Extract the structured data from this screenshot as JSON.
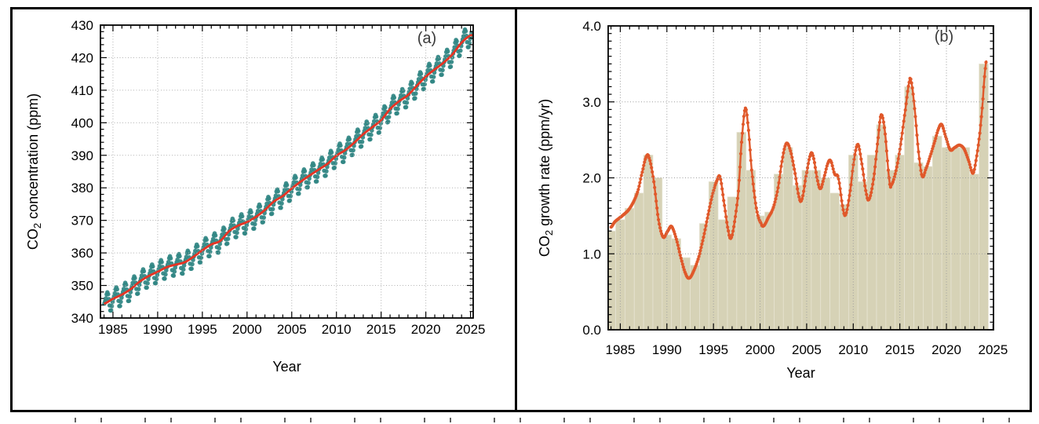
{
  "figure": {
    "panel_count": 2,
    "background": "#ffffff",
    "border_color": "#000000"
  },
  "chart_data": [
    {
      "type": "scatter+line",
      "panel_label": "(a)",
      "xlabel": "Year",
      "ylabel": {
        "prefix": "CO",
        "sub": "2",
        "rest": " concentration (ppm)"
      },
      "xlim": [
        1983.6,
        2025.3
      ],
      "ylim": [
        340,
        430
      ],
      "xticks": [
        1985,
        1990,
        1995,
        2000,
        2005,
        2010,
        2015,
        2020,
        2025
      ],
      "xtick_labels": [
        "1985",
        "1990",
        "1995",
        "2000",
        "2005",
        "2010",
        "2015",
        "2020",
        "2025"
      ],
      "yticks": [
        340,
        350,
        360,
        370,
        380,
        390,
        400,
        410,
        420,
        430
      ],
      "ytick_labels": [
        "340",
        "350",
        "360",
        "370",
        "380",
        "390",
        "400",
        "410",
        "420",
        "430"
      ],
      "x_minor_step": 1,
      "y_minor_step": 2,
      "grid": true,
      "grid_color": "#b0b0b0",
      "legend": "none",
      "series": [
        {
          "name": "monthly-mean-co2-with-seasonal-cycle",
          "style": "dots",
          "color": "#318784"
        },
        {
          "name": "deseasonalized-trend",
          "style": "line",
          "color": "#e63323"
        }
      ],
      "trend_ppm_by_year": {
        "years": [
          1984,
          1985,
          1986,
          1987,
          1988,
          1989,
          1990,
          1991,
          1992,
          1993,
          1994,
          1995,
          1996,
          1997,
          1998,
          1999,
          2000,
          2001,
          2002,
          2003,
          2004,
          2005,
          2006,
          2007,
          2008,
          2009,
          2010,
          2011,
          2012,
          2013,
          2014,
          2015,
          2016,
          2017,
          2018,
          2019,
          2020,
          2021,
          2022,
          2023,
          2024,
          2025
        ],
        "values": [
          344.4,
          345.9,
          347.2,
          348.9,
          351.2,
          352.9,
          354.2,
          355.6,
          356.4,
          357.1,
          358.8,
          360.8,
          362.6,
          363.7,
          366.7,
          368.4,
          369.5,
          371.1,
          373.2,
          375.8,
          377.5,
          379.8,
          381.9,
          383.8,
          385.6,
          387.4,
          389.9,
          391.6,
          393.9,
          396.5,
          398.6,
          400.8,
          404.2,
          406.6,
          408.5,
          411.4,
          414.2,
          416.4,
          418.5,
          421.1,
          424.6,
          426.8
        ]
      },
      "seasonal_cycle_ppm": [
        0.0,
        0.66,
        1.4,
        2.5,
        3.03,
        2.32,
        0.68,
        -1.42,
        -3.12,
        -3.25,
        -2.05,
        -0.9
      ],
      "dots_time_range": [
        1984.03,
        2025.15
      ],
      "line_time_range": [
        1984.0,
        2025.25
      ],
      "dot_radius": 2.8
    },
    {
      "type": "bar+line",
      "panel_label": "(b)",
      "xlabel": "Year",
      "ylabel": {
        "prefix": "CO",
        "sub": "2",
        "rest": " growth rate (ppm/yr)"
      },
      "xlim": [
        1983.7,
        2025.05
      ],
      "ylim": [
        0,
        4
      ],
      "xticks": [
        1985,
        1990,
        1995,
        2000,
        2005,
        2010,
        2015,
        2020,
        2025
      ],
      "xtick_labels": [
        "1985",
        "1990",
        "1995",
        "2000",
        "2005",
        "2010",
        "2015",
        "2020",
        "2025"
      ],
      "yticks": [
        0,
        1,
        2,
        3,
        4
      ],
      "ytick_labels": [
        "0.0",
        "1.0",
        "2.0",
        "3.0",
        "4.0"
      ],
      "x_minor_step": 1,
      "y_minor_step": 0.1,
      "grid": true,
      "grid_color": "#9e9e9e",
      "bars": {
        "name": "annual-mean-growth-rate",
        "color": "#d6d2b6",
        "edge_color": "#e9e6d6",
        "width_years": 1,
        "years": [
          1984,
          1985,
          1986,
          1987,
          1988,
          1989,
          1990,
          1991,
          1992,
          1993,
          1994,
          1995,
          1996,
          1997,
          1998,
          1999,
          2000,
          2001,
          2002,
          2003,
          2004,
          2005,
          2006,
          2007,
          2008,
          2009,
          2010,
          2011,
          2012,
          2013,
          2014,
          2015,
          2016,
          2017,
          2018,
          2019,
          2020,
          2021,
          2022,
          2023,
          2024
        ],
        "values": [
          1.3,
          1.45,
          1.6,
          1.8,
          2.3,
          2.0,
          1.25,
          1.2,
          0.95,
          0.85,
          1.4,
          1.95,
          1.45,
          1.75,
          2.6,
          2.1,
          1.5,
          1.55,
          2.05,
          2.4,
          1.9,
          2.1,
          2.1,
          2.0,
          1.8,
          1.65,
          2.3,
          1.95,
          2.3,
          2.7,
          2.1,
          2.3,
          3.2,
          2.2,
          2.15,
          2.55,
          2.4,
          2.4,
          2.4,
          2.05,
          3.5
        ]
      },
      "smoothed_curve": {
        "name": "smoothed-monthly-growth-rate",
        "color": "#e0582a",
        "line_width": 2.4,
        "dot_radius": 2.1,
        "dot_interval_years": 0.0833,
        "points": [
          [
            1984.0,
            1.35
          ],
          [
            1984.4,
            1.42
          ],
          [
            1984.9,
            1.47
          ],
          [
            1985.4,
            1.52
          ],
          [
            1985.9,
            1.58
          ],
          [
            1986.4,
            1.68
          ],
          [
            1986.9,
            1.83
          ],
          [
            1987.3,
            2.05
          ],
          [
            1987.8,
            2.28
          ],
          [
            1988.1,
            2.26
          ],
          [
            1988.6,
            1.95
          ],
          [
            1989.1,
            1.45
          ],
          [
            1989.6,
            1.22
          ],
          [
            1990.1,
            1.3
          ],
          [
            1990.5,
            1.36
          ],
          [
            1991.0,
            1.2
          ],
          [
            1991.5,
            0.95
          ],
          [
            1992.0,
            0.74
          ],
          [
            1992.4,
            0.68
          ],
          [
            1992.9,
            0.78
          ],
          [
            1993.4,
            0.95
          ],
          [
            1993.9,
            1.2
          ],
          [
            1994.4,
            1.5
          ],
          [
            1994.9,
            1.78
          ],
          [
            1995.4,
            1.97
          ],
          [
            1995.7,
            2.01
          ],
          [
            1996.1,
            1.7
          ],
          [
            1996.6,
            1.3
          ],
          [
            1996.9,
            1.21
          ],
          [
            1997.3,
            1.45
          ],
          [
            1997.7,
            1.85
          ],
          [
            1998.0,
            2.45
          ],
          [
            1998.4,
            2.91
          ],
          [
            1998.7,
            2.7
          ],
          [
            1999.1,
            2.1
          ],
          [
            1999.6,
            1.6
          ],
          [
            2000.1,
            1.4
          ],
          [
            2000.4,
            1.37
          ],
          [
            2000.9,
            1.48
          ],
          [
            2001.4,
            1.6
          ],
          [
            2001.9,
            1.85
          ],
          [
            2002.4,
            2.25
          ],
          [
            2002.8,
            2.45
          ],
          [
            2003.2,
            2.38
          ],
          [
            2003.7,
            2.1
          ],
          [
            2004.2,
            1.74
          ],
          [
            2004.5,
            1.72
          ],
          [
            2004.9,
            2.0
          ],
          [
            2005.4,
            2.3
          ],
          [
            2005.7,
            2.28
          ],
          [
            2006.2,
            1.95
          ],
          [
            2006.5,
            1.86
          ],
          [
            2006.9,
            2.02
          ],
          [
            2007.3,
            2.2
          ],
          [
            2007.6,
            2.22
          ],
          [
            2008.0,
            2.05
          ],
          [
            2008.4,
            2.0
          ],
          [
            2008.9,
            1.6
          ],
          [
            2009.2,
            1.52
          ],
          [
            2009.7,
            1.85
          ],
          [
            2010.1,
            2.25
          ],
          [
            2010.5,
            2.44
          ],
          [
            2010.9,
            2.2
          ],
          [
            2011.4,
            1.8
          ],
          [
            2011.7,
            1.72
          ],
          [
            2012.2,
            2.0
          ],
          [
            2012.7,
            2.55
          ],
          [
            2013.0,
            2.83
          ],
          [
            2013.4,
            2.6
          ],
          [
            2013.9,
            1.95
          ],
          [
            2014.1,
            1.91
          ],
          [
            2014.6,
            2.1
          ],
          [
            2015.1,
            2.45
          ],
          [
            2015.6,
            2.9
          ],
          [
            2016.0,
            3.25
          ],
          [
            2016.2,
            3.28
          ],
          [
            2016.6,
            2.9
          ],
          [
            2017.0,
            2.35
          ],
          [
            2017.4,
            2.02
          ],
          [
            2017.8,
            2.12
          ],
          [
            2018.3,
            2.3
          ],
          [
            2018.8,
            2.5
          ],
          [
            2019.2,
            2.66
          ],
          [
            2019.5,
            2.7
          ],
          [
            2019.9,
            2.55
          ],
          [
            2020.4,
            2.37
          ],
          [
            2020.9,
            2.4
          ],
          [
            2021.4,
            2.43
          ],
          [
            2021.9,
            2.38
          ],
          [
            2022.4,
            2.22
          ],
          [
            2022.85,
            2.06
          ],
          [
            2023.2,
            2.25
          ],
          [
            2023.6,
            2.6
          ],
          [
            2023.9,
            3.0
          ],
          [
            2024.1,
            3.35
          ],
          [
            2024.3,
            3.55
          ]
        ]
      }
    }
  ]
}
